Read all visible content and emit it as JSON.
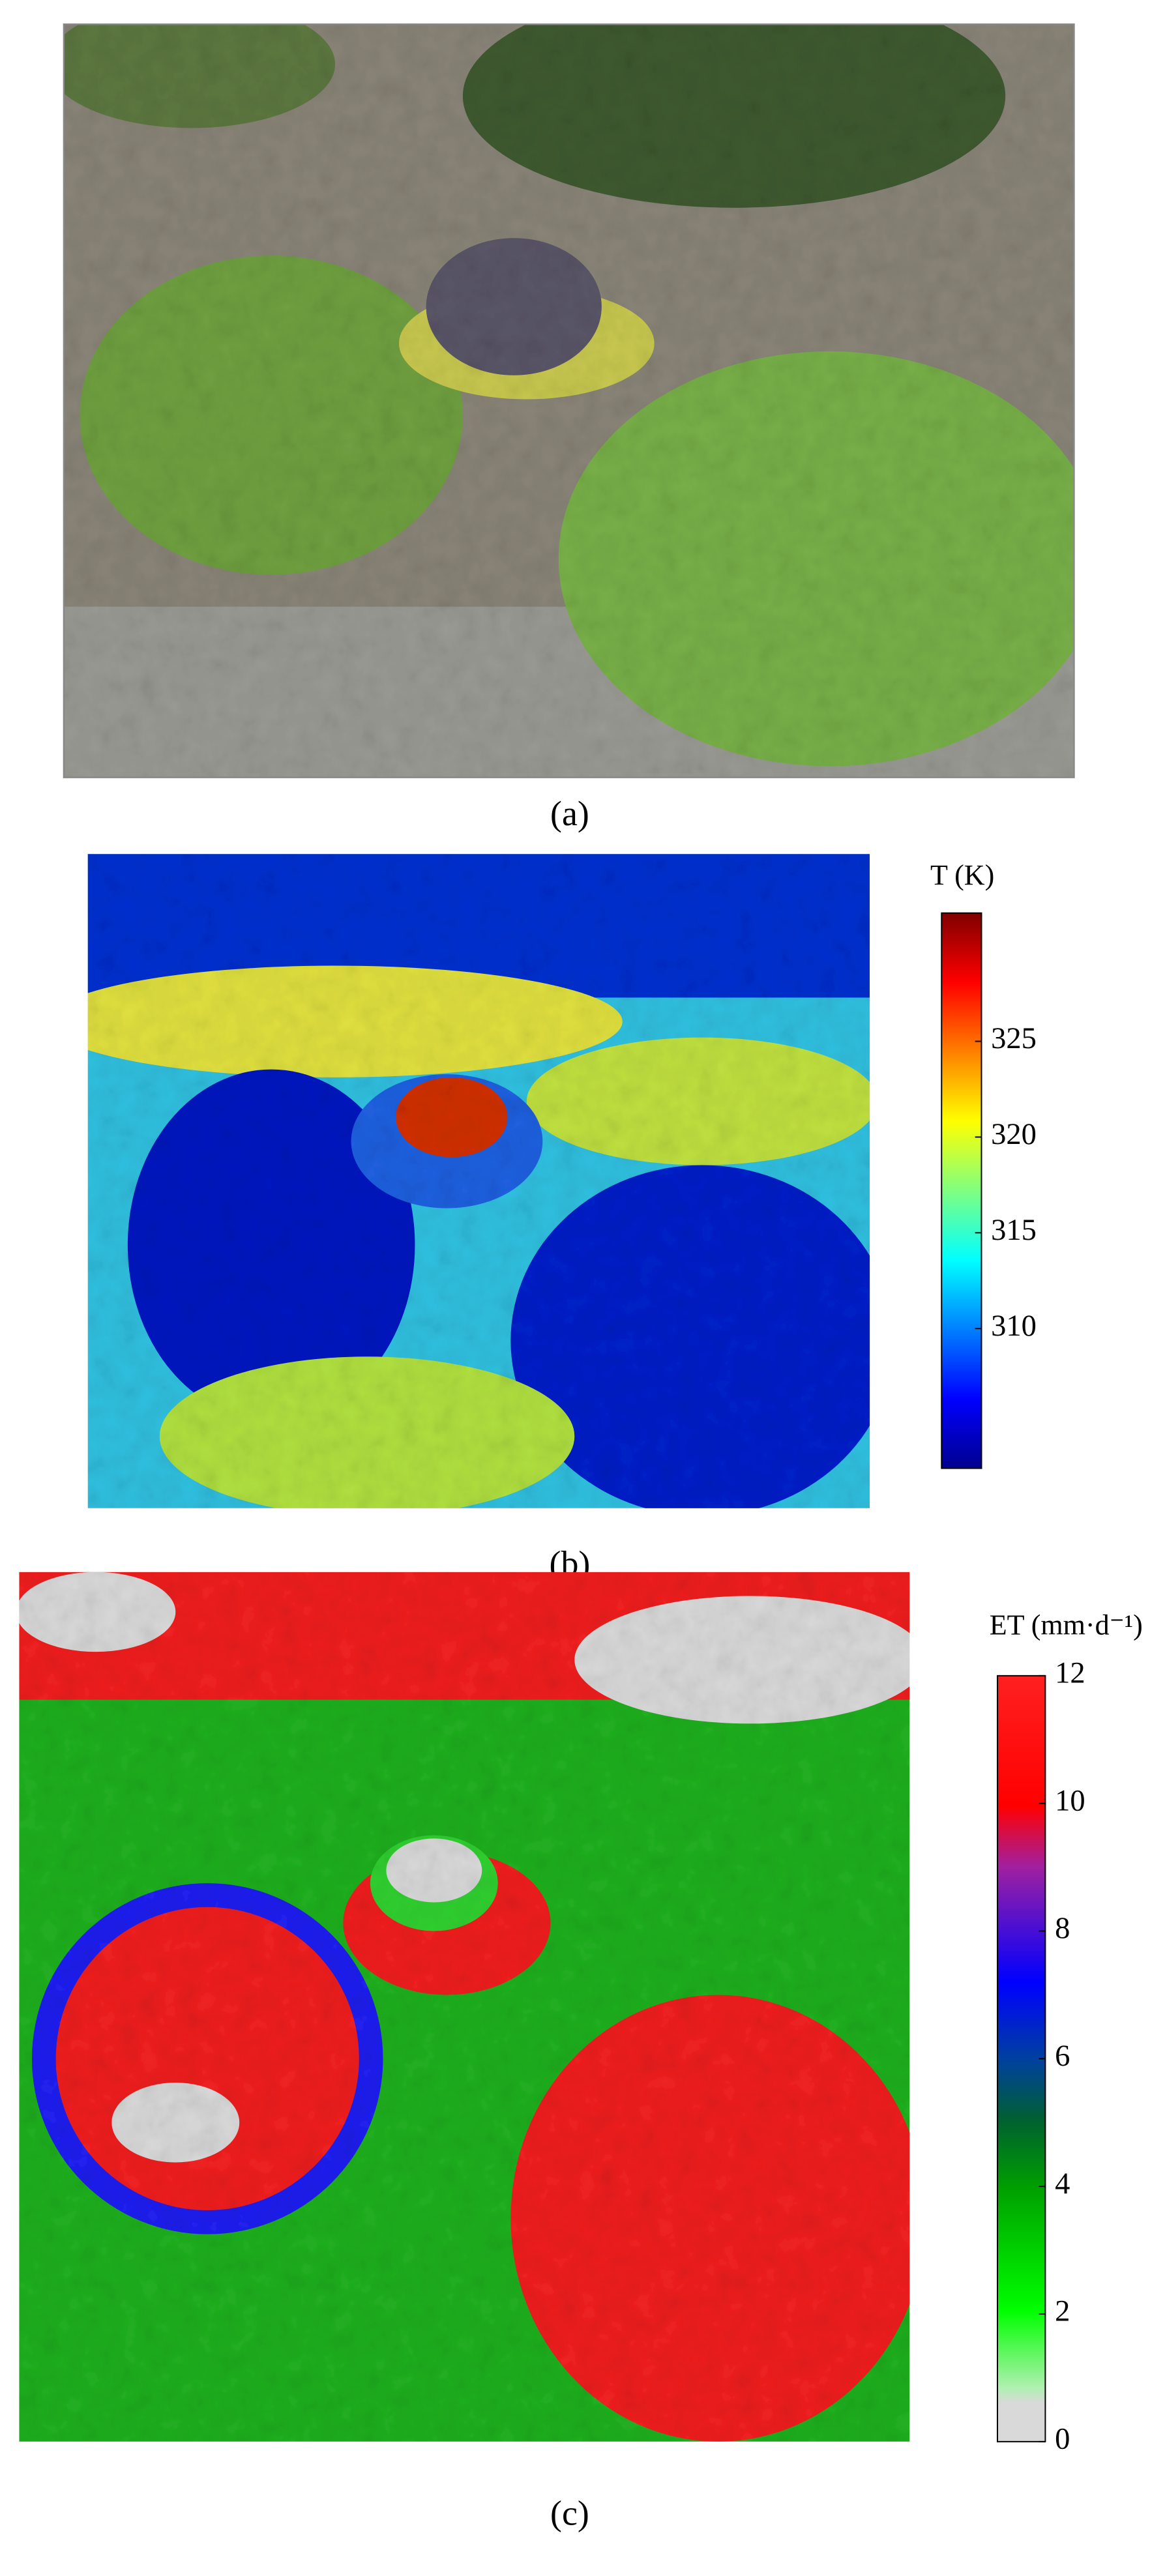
{
  "panels": [
    {
      "label": "(a)"
    },
    {
      "label": "(b)",
      "colorbar": {
        "title": "T (K)",
        "lim": [
          302.7,
          331.7
        ],
        "ticks": [
          310,
          315,
          320,
          325
        ]
      }
    },
    {
      "label": "(c)",
      "colorbar": {
        "title": "ET (mm·d⁻¹)",
        "lim": [
          0,
          12
        ],
        "ticks": [
          0,
          2,
          4,
          6,
          8,
          10,
          12
        ]
      }
    }
  ]
}
